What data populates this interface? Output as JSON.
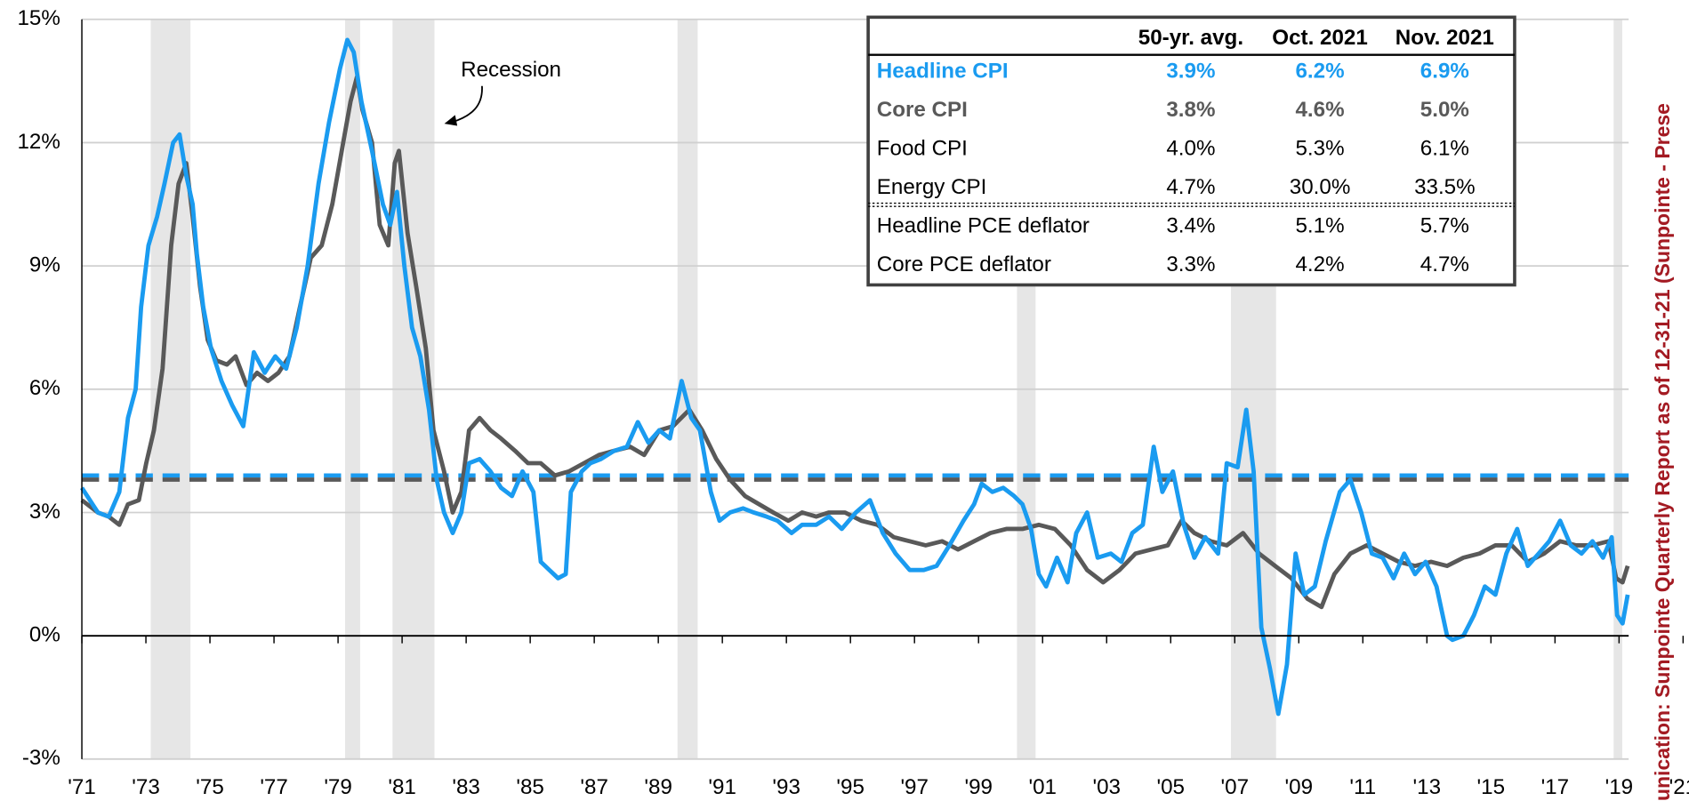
{
  "chart_data": {
    "type": "line",
    "xlim": [
      1971,
      2019.3
    ],
    "ylim": [
      -3,
      15
    ],
    "yticks": [
      {
        "value": -3,
        "label": "-3%"
      },
      {
        "value": 0,
        "label": "0%"
      },
      {
        "value": 3,
        "label": "3%"
      },
      {
        "value": 6,
        "label": "6%"
      },
      {
        "value": 9,
        "label": "9%"
      },
      {
        "value": 12,
        "label": "12%"
      },
      {
        "value": 15,
        "label": "15%"
      }
    ],
    "xticks": [
      {
        "value": 1971,
        "label": "'71"
      },
      {
        "value": 1973,
        "label": "'73"
      },
      {
        "value": 1975,
        "label": "'75"
      },
      {
        "value": 1977,
        "label": "'77"
      },
      {
        "value": 1979,
        "label": "'79"
      },
      {
        "value": 1981,
        "label": "'81"
      },
      {
        "value": 1983,
        "label": "'83"
      },
      {
        "value": 1985,
        "label": "'85"
      },
      {
        "value": 1987,
        "label": "'87"
      },
      {
        "value": 1989,
        "label": "'89"
      },
      {
        "value": 1991,
        "label": "'91"
      },
      {
        "value": 1993,
        "label": "'93"
      },
      {
        "value": 1995,
        "label": "'95"
      },
      {
        "value": 1997,
        "label": "'97"
      },
      {
        "value": 1999,
        "label": "'99"
      },
      {
        "value": 2001,
        "label": "'01"
      },
      {
        "value": 2003,
        "label": "'03"
      },
      {
        "value": 2005,
        "label": "'05"
      },
      {
        "value": 2007,
        "label": "'07"
      },
      {
        "value": 2009,
        "label": "'09"
      },
      {
        "value": 2011,
        "label": "'11"
      },
      {
        "value": 2013,
        "label": "'13"
      },
      {
        "value": 2015,
        "label": "'15"
      },
      {
        "value": 2017,
        "label": "'17"
      },
      {
        "value": 2019,
        "label": "'19"
      },
      {
        "value": 2021,
        "label": "'21"
      }
    ],
    "grid": true,
    "recession_label": "Recession",
    "recessions": [
      [
        1973.15,
        1974.39
      ],
      [
        1979.22,
        1979.69
      ],
      [
        1980.7,
        1982.01
      ],
      [
        1989.6,
        1990.23
      ],
      [
        2000.2,
        2000.78
      ],
      [
        2006.88,
        2008.29
      ],
      [
        2018.83,
        2019.1
      ]
    ],
    "recession_color": "#e6e6e6",
    "reference_lines": [
      {
        "value": 3.9,
        "color": "#1a9bf0"
      },
      {
        "value": 3.8,
        "color": "#595959"
      }
    ],
    "series": [
      {
        "color": "#595959",
        "x": [
          1971.0,
          1971.5,
          1971.84,
          1972.17,
          1972.44,
          1972.78,
          1973.01,
          1973.25,
          1973.52,
          1973.79,
          1974.02,
          1974.26,
          1974.46,
          1974.69,
          1974.93,
          1975.2,
          1975.53,
          1975.8,
          1976.14,
          1976.47,
          1976.81,
          1977.14,
          1977.48,
          1977.81,
          1978.15,
          1978.49,
          1978.82,
          1979.16,
          1979.39,
          1979.59,
          1979.76,
          1980.06,
          1980.3,
          1980.57,
          1980.77,
          1980.9,
          1981.17,
          1981.44,
          1981.74,
          1981.98,
          1982.31,
          1982.58,
          1982.85,
          1983.09,
          1983.42,
          1983.76,
          1984.09,
          1984.53,
          1984.93,
          1985.33,
          1985.77,
          1986.21,
          1986.68,
          1987.15,
          1987.62,
          1988.12,
          1988.56,
          1989.03,
          1989.46,
          1989.97,
          1990.37,
          1990.81,
          1991.24,
          1991.71,
          1992.15,
          1992.59,
          1993.06,
          1993.49,
          1993.93,
          1994.33,
          1994.83,
          1995.34,
          1995.84,
          1996.35,
          1996.85,
          1997.35,
          1997.86,
          1998.36,
          1998.86,
          1999.37,
          1999.87,
          2000.37,
          2000.88,
          2001.38,
          2001.88,
          2002.39,
          2002.89,
          2003.4,
          2003.9,
          2004.4,
          2004.91,
          2005.34,
          2005.74,
          2006.25,
          2006.75,
          2007.26,
          2007.76,
          2008.26,
          2008.77,
          2009.27,
          2009.71,
          2010.11,
          2010.61,
          2011.12,
          2011.62,
          2012.12,
          2012.63,
          2013.13,
          2013.63,
          2014.14,
          2014.64,
          2015.14,
          2015.65,
          2016.15,
          2016.66,
          2017.16,
          2017.66,
          2018.17,
          2018.67,
          2018.91,
          2019.11,
          2019.27
        ],
        "values": [
          3.3,
          3.0,
          2.9,
          2.7,
          3.2,
          3.3,
          4.2,
          5.0,
          6.5,
          9.5,
          11.0,
          11.5,
          10.2,
          8.5,
          7.2,
          6.7,
          6.6,
          6.8,
          6.1,
          6.4,
          6.2,
          6.4,
          6.8,
          8.0,
          9.2,
          9.5,
          10.5,
          12.0,
          13.0,
          13.6,
          12.8,
          12.0,
          10.0,
          9.5,
          11.5,
          11.8,
          9.8,
          8.5,
          7.0,
          5.0,
          4.0,
          3.0,
          3.5,
          5.0,
          5.3,
          5.0,
          4.8,
          4.5,
          4.2,
          4.2,
          3.9,
          4.0,
          4.2,
          4.4,
          4.5,
          4.6,
          4.4,
          5.0,
          5.1,
          5.5,
          5.0,
          4.3,
          3.8,
          3.4,
          3.2,
          3.0,
          2.8,
          3.0,
          2.9,
          3.0,
          3.0,
          2.8,
          2.7,
          2.4,
          2.3,
          2.2,
          2.3,
          2.1,
          2.3,
          2.5,
          2.6,
          2.6,
          2.7,
          2.6,
          2.2,
          1.6,
          1.3,
          1.6,
          2.0,
          2.1,
          2.2,
          2.8,
          2.5,
          2.3,
          2.2,
          2.5,
          2.0,
          1.7,
          1.4,
          0.9,
          0.7,
          1.5,
          2.0,
          2.2,
          2.0,
          1.8,
          1.7,
          1.8,
          1.7,
          1.9,
          2.0,
          2.2,
          2.2,
          1.8,
          2.0,
          2.3,
          2.2,
          2.2,
          2.3,
          1.4,
          1.3,
          1.7
        ]
      },
      {
        "color": "#1a9bf0",
        "x": [
          1971.0,
          1971.5,
          1971.84,
          1972.17,
          1972.44,
          1972.68,
          1972.85,
          1973.08,
          1973.35,
          1973.58,
          1973.85,
          1974.05,
          1974.26,
          1974.46,
          1974.59,
          1974.79,
          1975.03,
          1975.36,
          1975.7,
          1976.04,
          1976.37,
          1976.71,
          1977.04,
          1977.38,
          1977.71,
          1978.05,
          1978.39,
          1978.72,
          1979.06,
          1979.29,
          1979.49,
          1979.73,
          1980.06,
          1980.4,
          1980.63,
          1980.84,
          1981.07,
          1981.31,
          1981.57,
          1981.84,
          1982.08,
          1982.31,
          1982.58,
          1982.85,
          1983.09,
          1983.42,
          1983.76,
          1984.09,
          1984.43,
          1984.76,
          1985.1,
          1985.33,
          1985.6,
          1985.87,
          1986.11,
          1986.27,
          1986.61,
          1986.88,
          1987.21,
          1987.62,
          1988.02,
          1988.36,
          1988.69,
          1989.03,
          1989.36,
          1989.73,
          1990.03,
          1990.3,
          1990.64,
          1990.91,
          1991.24,
          1991.65,
          1991.98,
          1992.38,
          1992.72,
          1993.16,
          1993.49,
          1993.93,
          1994.33,
          1994.73,
          1995.17,
          1995.61,
          1996.01,
          1996.41,
          1996.85,
          1997.29,
          1997.69,
          1998.09,
          1998.53,
          1998.86,
          1999.1,
          1999.43,
          1999.77,
          2000.11,
          2000.37,
          2000.64,
          2000.88,
          2001.11,
          2001.45,
          2001.78,
          2002.05,
          2002.39,
          2002.72,
          2003.13,
          2003.46,
          2003.8,
          2004.13,
          2004.47,
          2004.74,
          2005.07,
          2005.41,
          2005.74,
          2006.08,
          2006.48,
          2006.75,
          2007.09,
          2007.36,
          2007.59,
          2007.83,
          2008.1,
          2008.36,
          2008.63,
          2008.9,
          2009.17,
          2009.5,
          2009.84,
          2010.28,
          2010.61,
          2010.95,
          2011.28,
          2011.62,
          2011.96,
          2012.29,
          2012.63,
          2012.96,
          2013.3,
          2013.63,
          2013.8,
          2014.14,
          2014.47,
          2014.81,
          2015.14,
          2015.48,
          2015.82,
          2016.15,
          2016.49,
          2016.82,
          2017.16,
          2017.49,
          2017.83,
          2018.17,
          2018.5,
          2018.77,
          2018.94,
          2019.11,
          2019.27
        ],
        "values": [
          3.6,
          3.0,
          2.9,
          3.5,
          5.3,
          6.0,
          8.0,
          9.5,
          10.2,
          11.0,
          12.0,
          12.2,
          11.2,
          10.5,
          9.3,
          8.0,
          7.0,
          6.2,
          5.6,
          5.1,
          6.9,
          6.4,
          6.8,
          6.5,
          7.5,
          9.0,
          11.0,
          12.5,
          13.8,
          14.5,
          14.2,
          13.0,
          11.8,
          10.5,
          10.0,
          10.8,
          9.0,
          7.5,
          6.8,
          5.5,
          3.8,
          3.0,
          2.5,
          3.0,
          4.2,
          4.3,
          4.0,
          3.6,
          3.4,
          4.0,
          3.5,
          1.8,
          1.6,
          1.4,
          1.5,
          3.5,
          4.0,
          4.2,
          4.3,
          4.5,
          4.6,
          5.2,
          4.7,
          5.0,
          4.8,
          6.2,
          5.3,
          5.0,
          3.5,
          2.8,
          3.0,
          3.1,
          3.0,
          2.9,
          2.8,
          2.5,
          2.7,
          2.7,
          2.9,
          2.6,
          3.0,
          3.3,
          2.5,
          2.0,
          1.6,
          1.6,
          1.7,
          2.2,
          2.8,
          3.2,
          3.7,
          3.5,
          3.6,
          3.4,
          3.2,
          2.6,
          1.5,
          1.2,
          1.9,
          1.3,
          2.5,
          3.0,
          1.9,
          2.0,
          1.8,
          2.5,
          2.7,
          4.6,
          3.5,
          4.0,
          2.7,
          1.9,
          2.4,
          2.0,
          4.2,
          4.1,
          5.5,
          4.0,
          0.2,
          -0.8,
          -1.9,
          -0.7,
          2.0,
          1.0,
          1.2,
          2.3,
          3.5,
          3.8,
          3.0,
          2.0,
          1.9,
          1.4,
          2.0,
          1.5,
          1.8,
          1.2,
          0.0,
          -0.1,
          0.0,
          0.5,
          1.2,
          1.0,
          2.0,
          2.6,
          1.7,
          2.0,
          2.3,
          2.8,
          2.2,
          2.0,
          2.3,
          1.9,
          2.4,
          0.5,
          0.3,
          1.0
        ]
      }
    ]
  },
  "table": {
    "columns": [
      "50-yr. avg.",
      "Oct. 2021",
      "Nov. 2021"
    ],
    "rows": [
      {
        "label": "Headline CPI",
        "cells": [
          "3.9%",
          "6.2%",
          "6.9%"
        ],
        "color": "#1a9bf0",
        "bold": true
      },
      {
        "label": "Core CPI",
        "cells": [
          "3.8%",
          "4.6%",
          "5.0%"
        ],
        "color": "#595959",
        "bold": true
      },
      {
        "label": "Food CPI",
        "cells": [
          "4.0%",
          "5.3%",
          "6.1%"
        ],
        "color": "#000000",
        "bold": false
      },
      {
        "label": "Energy CPI",
        "cells": [
          "4.7%",
          "30.0%",
          "33.5%"
        ],
        "color": "#000000",
        "bold": false
      },
      {
        "label": "Headline PCE deflator",
        "cells": [
          "3.4%",
          "5.1%",
          "5.7%"
        ],
        "color": "#000000",
        "bold": false
      },
      {
        "label": "Core PCE deflator",
        "cells": [
          "3.3%",
          "4.2%",
          "4.7%"
        ],
        "color": "#000000",
        "bold": false
      }
    ]
  },
  "side_note": "unication: Sunpointe Quarterly Report as of 12-31-21  (Sunpointe - Prese"
}
